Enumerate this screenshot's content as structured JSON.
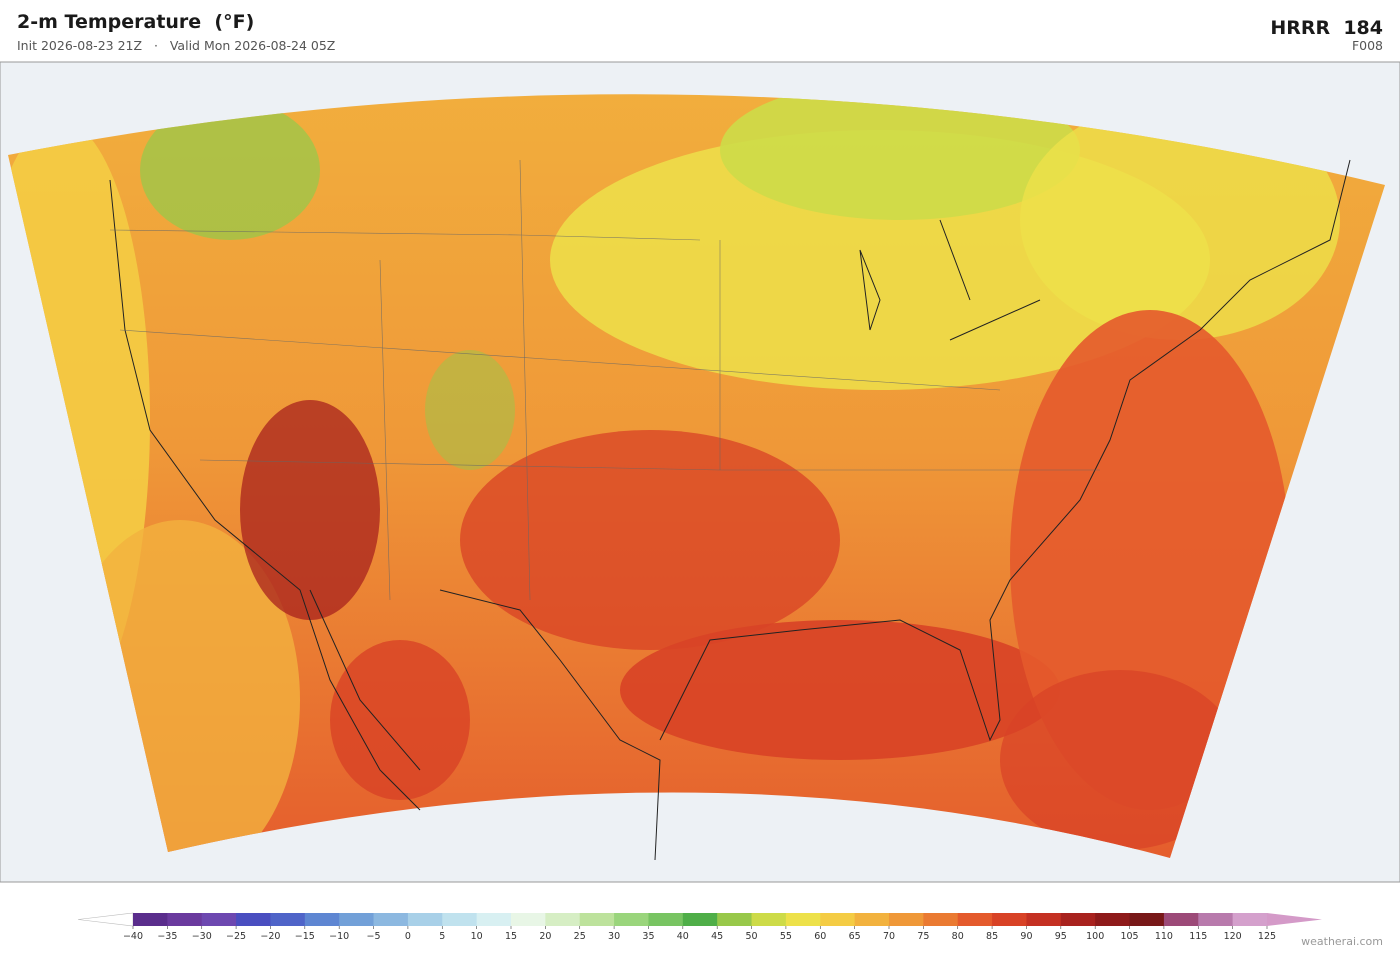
{
  "header": {
    "title": "2-m Temperature  (°F)",
    "subtitle": "Init 2026-08-23 21Z   ·   Valid Mon 2026-08-24 05Z",
    "model": "HRRR  184",
    "forecast": "F008"
  },
  "colorbar": {
    "ticks": [
      {
        "value": -40,
        "label": "−40"
      },
      {
        "value": -35,
        "label": "−35"
      },
      {
        "value": -30,
        "label": "−30"
      },
      {
        "value": -25,
        "label": "−25"
      },
      {
        "value": -20,
        "label": "−20"
      },
      {
        "value": -15,
        "label": "−15"
      },
      {
        "value": -10,
        "label": "−10"
      },
      {
        "value": -5,
        "label": "−5"
      },
      0,
      5,
      10,
      15,
      20,
      25,
      30,
      35,
      40,
      45,
      50,
      55,
      60,
      65,
      70,
      75,
      80,
      85,
      90,
      95,
      100,
      105,
      110,
      115,
      120,
      125
    ],
    "colors": [
      "#5a2d8c",
      "#6a3a9e",
      "#6d48b0",
      "#4a4ec0",
      "#4f64c8",
      "#5e86d2",
      "#72a0d8",
      "#8cb8e0",
      "#a8d0e8",
      "#c0e2ee",
      "#d8f0f2",
      "#e8f6e6",
      "#d6eec4",
      "#bde29c",
      "#9ad57c",
      "#78c462",
      "#4fae48",
      "#98c84a",
      "#cddb48",
      "#ede14a",
      "#f4cc44",
      "#f2b23e",
      "#ef9838",
      "#ea7a32",
      "#e45a2c",
      "#d84226",
      "#c43022",
      "#a8221e",
      "#8e1a1a",
      "#781818",
      "#9c4a78",
      "#b87aac",
      "#d4a0cc"
    ],
    "under_color": "#ffffff",
    "over_color": "#d49ac8"
  },
  "footer": {
    "credit": "weatherai.com"
  }
}
